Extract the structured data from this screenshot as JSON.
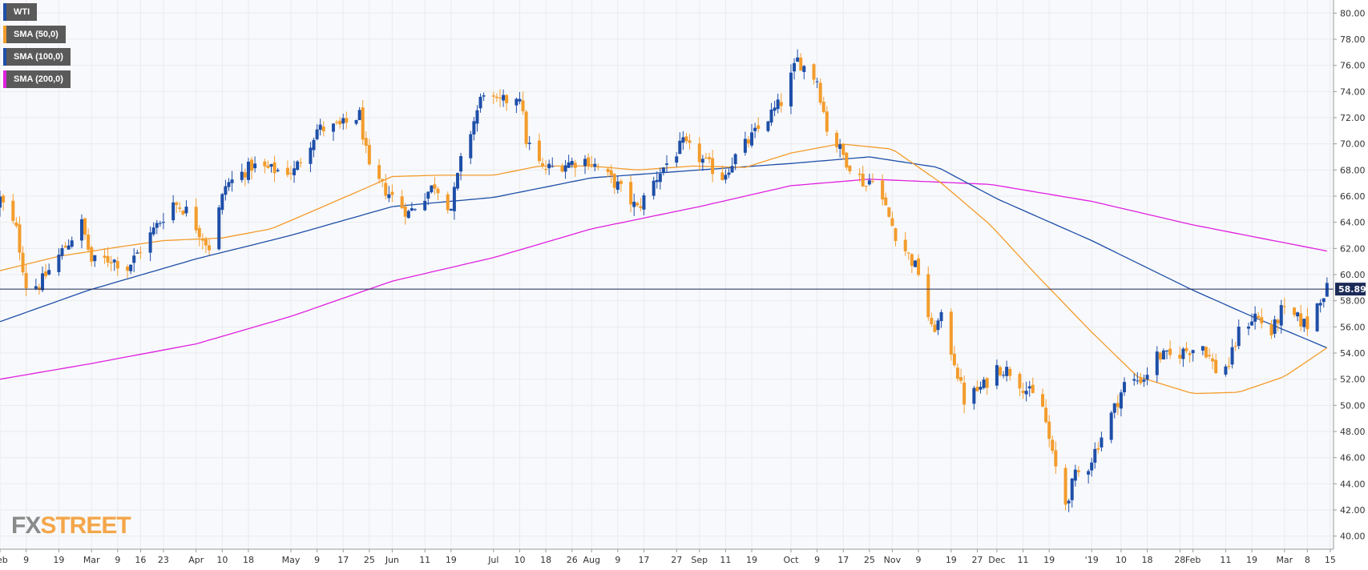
{
  "legend": [
    {
      "label": "WTI",
      "color": "#1e4fa8"
    },
    {
      "label": "SMA (50,0)",
      "color": "#f39c2c"
    },
    {
      "label": "SMA (100,0)",
      "color": "#1e4fa8"
    },
    {
      "label": "SMA (200,0)",
      "color": "#e020e0"
    }
  ],
  "logo": {
    "fx": "FX",
    "street": "STREET"
  },
  "colors": {
    "bull": "#1e4fa8",
    "bear": "#f39c2c",
    "sma50": "#f39c2c",
    "sma100": "#1e4fa8",
    "sma200": "#e020e0",
    "price_line": "#1c2a57",
    "grid": "#ebebeb"
  },
  "chart_data": {
    "type": "candlestick",
    "title": "",
    "xlabel": "",
    "ylabel": "",
    "ylim": [
      39,
      81
    ],
    "x_range": [
      "2018-02-01",
      "2019-03-16"
    ],
    "y_ticks": [
      "80.00",
      "78.00",
      "76.00",
      "74.00",
      "72.00",
      "70.00",
      "68.00",
      "66.00",
      "64.00",
      "62.00",
      "60.00",
      "58.00",
      "56.00",
      "54.00",
      "52.00",
      "50.00",
      "48.00",
      "46.00",
      "44.00",
      "42.00",
      "40.00"
    ],
    "x_ticks": [
      {
        "date": "2018-02-01",
        "label": "Feb"
      },
      {
        "date": "2018-02-09",
        "label": "9"
      },
      {
        "date": "2018-02-19",
        "label": "19"
      },
      {
        "date": "2018-03-01",
        "label": "Mar"
      },
      {
        "date": "2018-03-09",
        "label": "9"
      },
      {
        "date": "2018-03-16",
        "label": "16"
      },
      {
        "date": "2018-03-23",
        "label": "23"
      },
      {
        "date": "2018-04-02",
        "label": "Apr"
      },
      {
        "date": "2018-04-10",
        "label": "10"
      },
      {
        "date": "2018-04-18",
        "label": "18"
      },
      {
        "date": "2018-05-01",
        "label": "May"
      },
      {
        "date": "2018-05-09",
        "label": "9"
      },
      {
        "date": "2018-05-17",
        "label": "17"
      },
      {
        "date": "2018-05-25",
        "label": "25"
      },
      {
        "date": "2018-06-01",
        "label": "Jun"
      },
      {
        "date": "2018-06-11",
        "label": "11"
      },
      {
        "date": "2018-06-19",
        "label": "19"
      },
      {
        "date": "2018-07-02",
        "label": "Jul"
      },
      {
        "date": "2018-07-10",
        "label": "10"
      },
      {
        "date": "2018-07-18",
        "label": "18"
      },
      {
        "date": "2018-07-26",
        "label": "26"
      },
      {
        "date": "2018-08-01",
        "label": "Aug"
      },
      {
        "date": "2018-08-09",
        "label": "9"
      },
      {
        "date": "2018-08-17",
        "label": "17"
      },
      {
        "date": "2018-08-27",
        "label": "27"
      },
      {
        "date": "2018-09-03",
        "label": "Sep"
      },
      {
        "date": "2018-09-11",
        "label": "11"
      },
      {
        "date": "2018-09-19",
        "label": "19"
      },
      {
        "date": "2018-10-01",
        "label": "Oct"
      },
      {
        "date": "2018-10-09",
        "label": "9"
      },
      {
        "date": "2018-10-17",
        "label": "17"
      },
      {
        "date": "2018-10-25",
        "label": "25"
      },
      {
        "date": "2018-11-01",
        "label": "Nov"
      },
      {
        "date": "2018-11-09",
        "label": "9"
      },
      {
        "date": "2018-11-19",
        "label": "19"
      },
      {
        "date": "2018-11-27",
        "label": "27"
      },
      {
        "date": "2018-12-03",
        "label": "Dec"
      },
      {
        "date": "2018-12-11",
        "label": "11"
      },
      {
        "date": "2018-12-19",
        "label": "19"
      },
      {
        "date": "2019-01-01",
        "label": "'19"
      },
      {
        "date": "2019-01-10",
        "label": "10"
      },
      {
        "date": "2019-01-18",
        "label": "18"
      },
      {
        "date": "2019-01-28",
        "label": "28"
      },
      {
        "date": "2019-02-01",
        "label": "Feb"
      },
      {
        "date": "2019-02-11",
        "label": "11"
      },
      {
        "date": "2019-02-19",
        "label": "19"
      },
      {
        "date": "2019-03-01",
        "label": "Mar"
      },
      {
        "date": "2019-03-08",
        "label": "8"
      },
      {
        "date": "2019-03-15",
        "label": "15"
      }
    ],
    "last_price": {
      "value": 58.89,
      "label": "58.89"
    },
    "anchors": [
      [
        "2018-02-01",
        65.8
      ],
      [
        "2018-02-06",
        63.4
      ],
      [
        "2018-02-09",
        59.2
      ],
      [
        "2018-02-13",
        59.2
      ],
      [
        "2018-02-20",
        61.8
      ],
      [
        "2018-02-26",
        63.9
      ],
      [
        "2018-03-01",
        61.0
      ],
      [
        "2018-03-07",
        61.2
      ],
      [
        "2018-03-12",
        60.5
      ],
      [
        "2018-03-20",
        63.4
      ],
      [
        "2018-03-26",
        65.5
      ],
      [
        "2018-03-30",
        64.9
      ],
      [
        "2018-04-06",
        62.1
      ],
      [
        "2018-04-11",
        66.8
      ],
      [
        "2018-04-19",
        68.3
      ],
      [
        "2018-04-25",
        68.0
      ],
      [
        "2018-05-02",
        67.9
      ],
      [
        "2018-05-09",
        71.1
      ],
      [
        "2018-05-16",
        71.3
      ],
      [
        "2018-05-22",
        72.2
      ],
      [
        "2018-05-25",
        67.9
      ],
      [
        "2018-05-29",
        66.7
      ],
      [
        "2018-06-06",
        64.7
      ],
      [
        "2018-06-14",
        66.9
      ],
      [
        "2018-06-19",
        65.1
      ],
      [
        "2018-06-22",
        68.6
      ],
      [
        "2018-06-29",
        74.1
      ],
      [
        "2018-07-03",
        73.0
      ],
      [
        "2018-07-10",
        73.8
      ],
      [
        "2018-07-12",
        70.3
      ],
      [
        "2018-07-17",
        68.0
      ],
      [
        "2018-07-24",
        68.5
      ],
      [
        "2018-07-31",
        68.8
      ],
      [
        "2018-08-09",
        66.8
      ],
      [
        "2018-08-15",
        65.0
      ],
      [
        "2018-08-22",
        67.9
      ],
      [
        "2018-08-29",
        70.0
      ],
      [
        "2018-09-05",
        68.5
      ],
      [
        "2018-09-10",
        67.5
      ],
      [
        "2018-09-14",
        69.0
      ],
      [
        "2018-09-20",
        70.8
      ],
      [
        "2018-09-28",
        73.2
      ],
      [
        "2018-10-03",
        76.4
      ],
      [
        "2018-10-09",
        74.9
      ],
      [
        "2018-10-12",
        71.2
      ],
      [
        "2018-10-18",
        68.7
      ],
      [
        "2018-10-24",
        66.8
      ],
      [
        "2018-10-26",
        67.6
      ],
      [
        "2018-11-02",
        63.1
      ],
      [
        "2018-11-09",
        60.2
      ],
      [
        "2018-11-13",
        55.7
      ],
      [
        "2018-11-16",
        56.6
      ],
      [
        "2018-11-20",
        53.4
      ],
      [
        "2018-11-23",
        50.4
      ],
      [
        "2018-11-29",
        51.5
      ],
      [
        "2018-12-03",
        52.9
      ],
      [
        "2018-12-07",
        52.6
      ],
      [
        "2018-12-12",
        51.2
      ],
      [
        "2018-12-17",
        49.9
      ],
      [
        "2018-12-20",
        46.1
      ],
      [
        "2018-12-24",
        42.5
      ],
      [
        "2018-12-27",
        44.6
      ],
      [
        "2018-12-31",
        45.4
      ],
      [
        "2019-01-03",
        47.1
      ],
      [
        "2019-01-08",
        49.8
      ],
      [
        "2019-01-11",
        51.6
      ],
      [
        "2019-01-17",
        52.1
      ],
      [
        "2019-01-21",
        53.8
      ],
      [
        "2019-01-25",
        53.7
      ],
      [
        "2019-01-30",
        54.2
      ],
      [
        "2019-02-04",
        54.6
      ],
      [
        "2019-02-08",
        52.7
      ],
      [
        "2019-02-12",
        53.1
      ],
      [
        "2019-02-15",
        55.6
      ],
      [
        "2019-02-20",
        56.9
      ],
      [
        "2019-02-25",
        55.5
      ],
      [
        "2019-02-28",
        57.2
      ],
      [
        "2019-03-05",
        56.6
      ],
      [
        "2019-03-08",
        56.1
      ],
      [
        "2019-03-12",
        58.3
      ],
      [
        "2019-03-14",
        58.9
      ]
    ],
    "series": [
      {
        "name": "WTI",
        "type": "candlestick"
      },
      {
        "name": "SMA (50,0)",
        "points": [
          [
            "2018-02-01",
            60.3
          ],
          [
            "2018-02-19",
            61.4
          ],
          [
            "2018-03-09",
            62.1
          ],
          [
            "2018-03-23",
            62.6
          ],
          [
            "2018-04-10",
            62.8
          ],
          [
            "2018-04-25",
            63.5
          ],
          [
            "2018-05-09",
            65.0
          ],
          [
            "2018-05-21",
            66.3
          ],
          [
            "2018-06-01",
            67.5
          ],
          [
            "2018-06-15",
            67.6
          ],
          [
            "2018-07-02",
            67.6
          ],
          [
            "2018-07-16",
            68.3
          ],
          [
            "2018-08-01",
            68.3
          ],
          [
            "2018-08-15",
            68.0
          ],
          [
            "2018-09-01",
            68.3
          ],
          [
            "2018-09-17",
            68.2
          ],
          [
            "2018-10-01",
            69.3
          ],
          [
            "2018-10-16",
            70.0
          ],
          [
            "2018-11-01",
            69.6
          ],
          [
            "2018-11-16",
            67.0
          ],
          [
            "2018-12-01",
            63.8
          ],
          [
            "2018-12-15",
            60.0
          ],
          [
            "2019-01-01",
            55.6
          ],
          [
            "2019-01-15",
            52.2
          ],
          [
            "2019-02-01",
            50.9
          ],
          [
            "2019-02-15",
            51.0
          ],
          [
            "2019-03-01",
            52.2
          ],
          [
            "2019-03-14",
            54.4
          ]
        ]
      },
      {
        "name": "SMA (100,0)",
        "points": [
          [
            "2018-02-01",
            56.4
          ],
          [
            "2018-02-28",
            58.8
          ],
          [
            "2018-04-02",
            61.2
          ],
          [
            "2018-05-01",
            63.0
          ],
          [
            "2018-06-01",
            65.2
          ],
          [
            "2018-07-02",
            65.9
          ],
          [
            "2018-08-01",
            67.4
          ],
          [
            "2018-09-03",
            68.0
          ],
          [
            "2018-10-01",
            68.5
          ],
          [
            "2018-10-25",
            69.0
          ],
          [
            "2018-11-15",
            68.2
          ],
          [
            "2018-12-03",
            65.8
          ],
          [
            "2019-01-01",
            62.6
          ],
          [
            "2019-02-01",
            58.8
          ],
          [
            "2019-02-20",
            56.7
          ],
          [
            "2019-03-14",
            54.4
          ]
        ]
      },
      {
        "name": "SMA (200,0)",
        "points": [
          [
            "2018-02-01",
            52.0
          ],
          [
            "2018-03-01",
            53.2
          ],
          [
            "2018-04-02",
            54.7
          ],
          [
            "2018-05-01",
            56.8
          ],
          [
            "2018-06-01",
            59.5
          ],
          [
            "2018-07-02",
            61.3
          ],
          [
            "2018-08-01",
            63.5
          ],
          [
            "2018-09-03",
            65.2
          ],
          [
            "2018-10-01",
            66.8
          ],
          [
            "2018-10-25",
            67.3
          ],
          [
            "2018-12-01",
            66.9
          ],
          [
            "2019-01-01",
            65.6
          ],
          [
            "2019-02-01",
            63.8
          ],
          [
            "2019-03-14",
            61.8
          ]
        ]
      }
    ]
  }
}
